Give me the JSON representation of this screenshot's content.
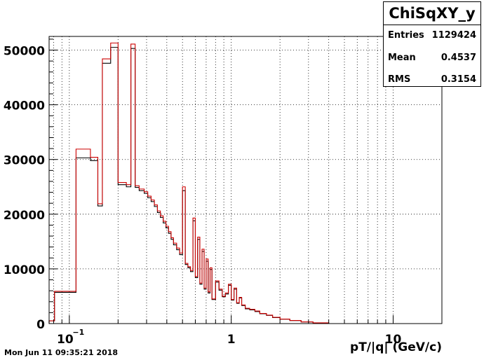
{
  "stats": {
    "title": "ChiSqXY_y",
    "rows": [
      {
        "label": "Entries",
        "value": "1129424"
      },
      {
        "label": "Mean",
        "value": "0.4537"
      },
      {
        "label": "RMS",
        "value": "0.3154"
      }
    ]
  },
  "timestamp": "Mon Jun 11 09:35:21 2018",
  "chart_data": {
    "type": "line",
    "title": "ChiSqXY_y",
    "xlabel": "pT/|q| (GeV/c)",
    "ylabel": "",
    "xscale": "log",
    "xlim": [
      0.075,
      20
    ],
    "ylim": [
      0,
      52500
    ],
    "grid": true,
    "x_tick_labels": [
      {
        "base": "10",
        "exp": "−1",
        "value": 0.1
      },
      {
        "base": "1",
        "exp": "",
        "value": 1
      },
      {
        "base": "10",
        "exp": "",
        "value": 10
      }
    ],
    "y_tick_labels": [
      "0",
      "10000",
      "20000",
      "30000",
      "40000",
      "50000"
    ],
    "y_ticks": [
      0,
      10000,
      20000,
      30000,
      40000,
      50000
    ],
    "series": [
      {
        "color": "#000000",
        "bins": [
          [
            0.075,
            0.081,
            500
          ],
          [
            0.081,
            0.11,
            5700
          ],
          [
            0.11,
            0.135,
            30300
          ],
          [
            0.135,
            0.15,
            29800
          ],
          [
            0.15,
            0.16,
            21500
          ],
          [
            0.16,
            0.18,
            47600
          ],
          [
            0.18,
            0.2,
            50500
          ],
          [
            0.2,
            0.225,
            25400
          ],
          [
            0.225,
            0.24,
            25000
          ],
          [
            0.24,
            0.255,
            50300
          ],
          [
            0.255,
            0.27,
            24900
          ],
          [
            0.27,
            0.29,
            24300
          ],
          [
            0.29,
            0.305,
            23800
          ],
          [
            0.305,
            0.32,
            23000
          ],
          [
            0.32,
            0.335,
            22300
          ],
          [
            0.335,
            0.35,
            21400
          ],
          [
            0.35,
            0.365,
            20300
          ],
          [
            0.365,
            0.38,
            19400
          ],
          [
            0.38,
            0.395,
            18400
          ],
          [
            0.395,
            0.41,
            17500
          ],
          [
            0.41,
            0.425,
            16500
          ],
          [
            0.425,
            0.44,
            15400
          ],
          [
            0.44,
            0.46,
            14400
          ],
          [
            0.46,
            0.48,
            13500
          ],
          [
            0.48,
            0.5,
            12600
          ],
          [
            0.5,
            0.52,
            24300
          ],
          [
            0.52,
            0.54,
            10800
          ],
          [
            0.54,
            0.56,
            10200
          ],
          [
            0.56,
            0.58,
            9500
          ],
          [
            0.58,
            0.6,
            18800
          ],
          [
            0.6,
            0.62,
            8400
          ],
          [
            0.62,
            0.64,
            15400
          ],
          [
            0.64,
            0.66,
            7200
          ],
          [
            0.66,
            0.68,
            13200
          ],
          [
            0.68,
            0.7,
            6300
          ],
          [
            0.7,
            0.72,
            11400
          ],
          [
            0.72,
            0.74,
            5600
          ],
          [
            0.74,
            0.76,
            9900
          ],
          [
            0.76,
            0.8,
            4400
          ],
          [
            0.8,
            0.84,
            7600
          ],
          [
            0.84,
            0.88,
            6100
          ],
          [
            0.88,
            0.92,
            4900
          ],
          [
            0.92,
            0.96,
            5400
          ],
          [
            0.96,
            1.0,
            7000
          ],
          [
            1.0,
            1.04,
            4300
          ],
          [
            1.04,
            1.08,
            6300
          ],
          [
            1.08,
            1.12,
            3700
          ],
          [
            1.12,
            1.16,
            4700
          ],
          [
            1.16,
            1.22,
            3300
          ],
          [
            1.22,
            1.3,
            2700
          ],
          [
            1.3,
            1.4,
            2500
          ],
          [
            1.4,
            1.5,
            2200
          ],
          [
            1.5,
            1.65,
            1800
          ],
          [
            1.65,
            1.8,
            1500
          ],
          [
            1.8,
            2.0,
            1100
          ],
          [
            2.0,
            2.3,
            800
          ],
          [
            2.3,
            2.7,
            550
          ],
          [
            2.7,
            3.2,
            300
          ],
          [
            3.2,
            4.0,
            120
          ],
          [
            4.0,
            20,
            0
          ]
        ]
      },
      {
        "color": "#cc0000",
        "bins": [
          [
            0.075,
            0.081,
            500
          ],
          [
            0.081,
            0.11,
            5900
          ],
          [
            0.11,
            0.135,
            31900
          ],
          [
            0.135,
            0.15,
            30400
          ],
          [
            0.15,
            0.16,
            21900
          ],
          [
            0.16,
            0.18,
            48400
          ],
          [
            0.18,
            0.2,
            51300
          ],
          [
            0.2,
            0.225,
            25800
          ],
          [
            0.225,
            0.24,
            25400
          ],
          [
            0.24,
            0.255,
            51100
          ],
          [
            0.255,
            0.27,
            25200
          ],
          [
            0.27,
            0.29,
            24600
          ],
          [
            0.29,
            0.305,
            24100
          ],
          [
            0.305,
            0.32,
            23300
          ],
          [
            0.32,
            0.335,
            22600
          ],
          [
            0.335,
            0.35,
            21700
          ],
          [
            0.35,
            0.365,
            20600
          ],
          [
            0.365,
            0.38,
            19700
          ],
          [
            0.38,
            0.395,
            18700
          ],
          [
            0.395,
            0.41,
            17800
          ],
          [
            0.41,
            0.425,
            16800
          ],
          [
            0.425,
            0.44,
            15700
          ],
          [
            0.44,
            0.46,
            14700
          ],
          [
            0.46,
            0.48,
            13800
          ],
          [
            0.48,
            0.5,
            12900
          ],
          [
            0.5,
            0.52,
            25000
          ],
          [
            0.52,
            0.54,
            11000
          ],
          [
            0.54,
            0.56,
            10400
          ],
          [
            0.56,
            0.58,
            9700
          ],
          [
            0.58,
            0.6,
            19300
          ],
          [
            0.6,
            0.62,
            8600
          ],
          [
            0.62,
            0.64,
            15800
          ],
          [
            0.64,
            0.66,
            7400
          ],
          [
            0.66,
            0.68,
            13600
          ],
          [
            0.68,
            0.7,
            6500
          ],
          [
            0.7,
            0.72,
            11800
          ],
          [
            0.72,
            0.74,
            5800
          ],
          [
            0.74,
            0.76,
            10200
          ],
          [
            0.76,
            0.8,
            4500
          ],
          [
            0.8,
            0.84,
            7800
          ],
          [
            0.84,
            0.88,
            6300
          ],
          [
            0.88,
            0.92,
            5000
          ],
          [
            0.92,
            0.96,
            5600
          ],
          [
            0.96,
            1.0,
            7200
          ],
          [
            1.0,
            1.04,
            4400
          ],
          [
            1.04,
            1.08,
            6500
          ],
          [
            1.08,
            1.12,
            3800
          ],
          [
            1.12,
            1.16,
            4800
          ],
          [
            1.16,
            1.22,
            3400
          ],
          [
            1.22,
            1.3,
            2800
          ],
          [
            1.3,
            1.4,
            2600
          ],
          [
            1.4,
            1.5,
            2300
          ],
          [
            1.5,
            1.65,
            1850
          ],
          [
            1.65,
            1.8,
            1550
          ],
          [
            1.8,
            2.0,
            1150
          ],
          [
            2.0,
            2.3,
            830
          ],
          [
            2.3,
            2.7,
            570
          ],
          [
            2.7,
            3.2,
            310
          ],
          [
            3.2,
            4.0,
            130
          ],
          [
            4.0,
            20,
            0
          ]
        ]
      }
    ]
  }
}
